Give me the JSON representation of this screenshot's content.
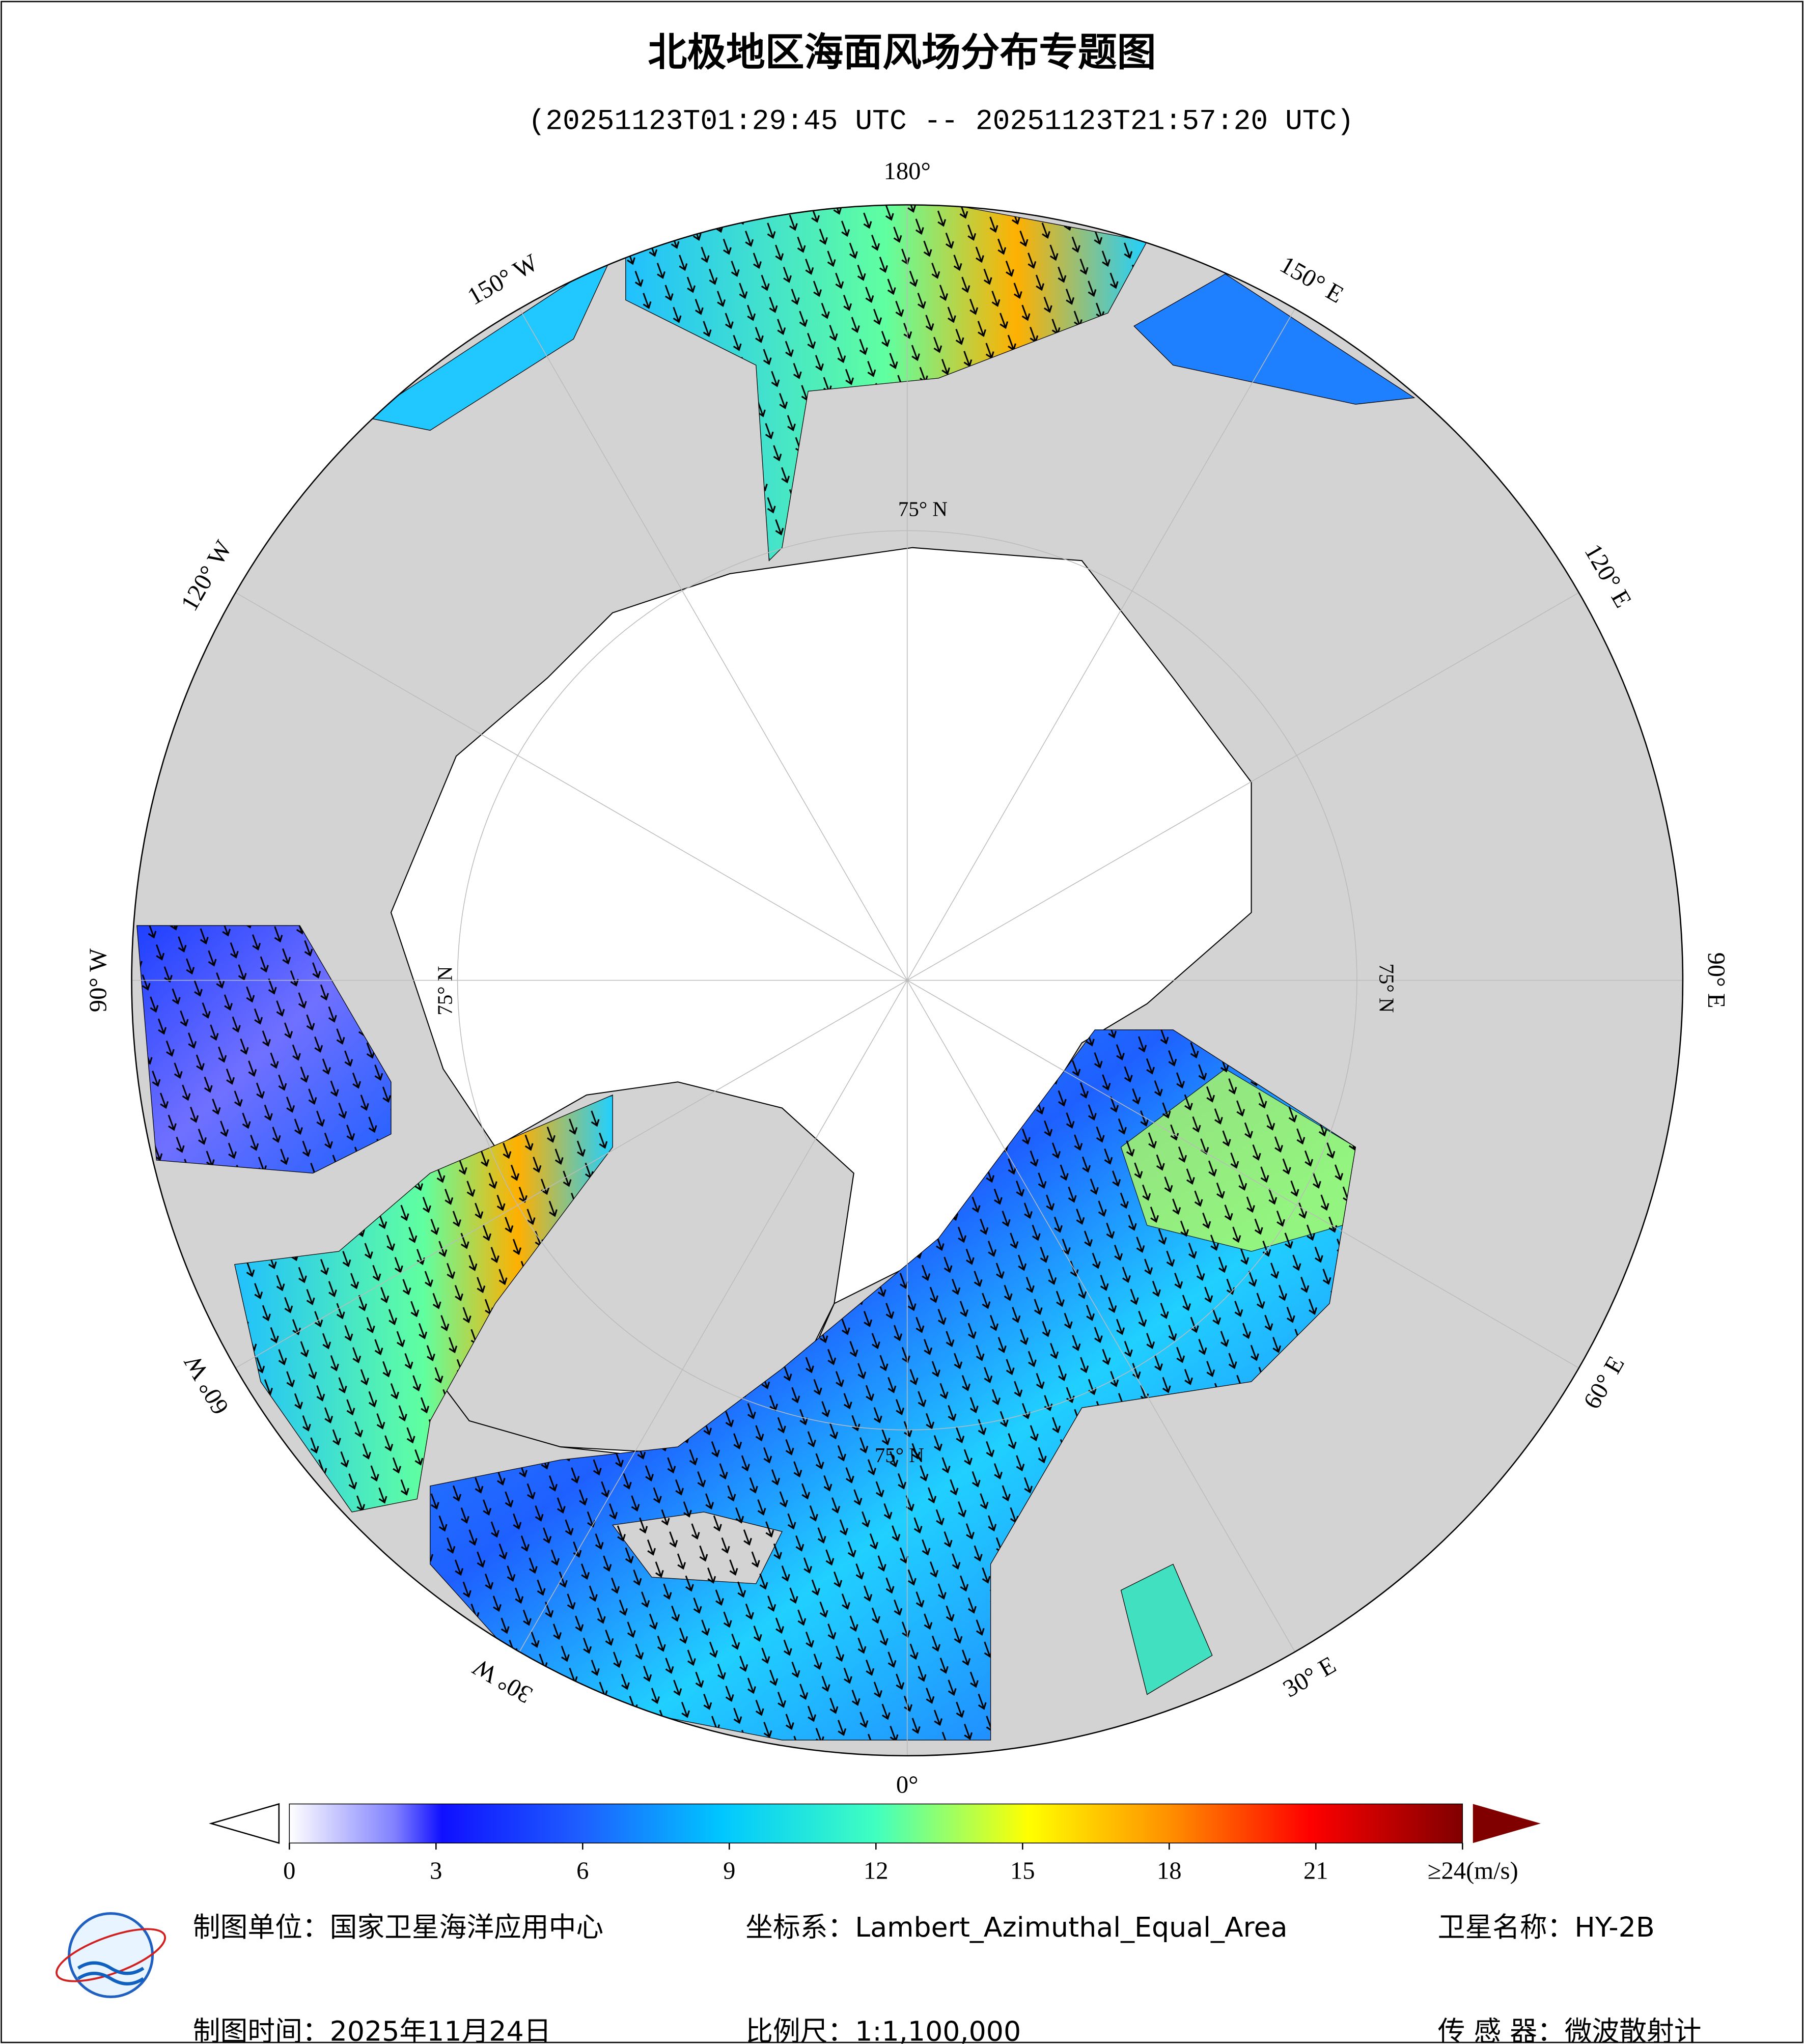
{
  "header": {
    "title": "北极地区海面风场分布专题图",
    "subtitle": "(20251123T01:29:45 UTC -- 20251123T21:57:20 UTC)"
  },
  "map": {
    "longitude_labels": [
      "180°",
      "150° E",
      "120° E",
      "90° E",
      "60° E",
      "30° E",
      "0°",
      "30° W",
      "60° W",
      "90° W",
      "120° W",
      "150° W"
    ],
    "latitude_label": "75° N"
  },
  "colorbar": {
    "lim": [
      0,
      24
    ],
    "ticks": [
      0,
      3,
      6,
      9,
      12,
      15,
      18,
      21,
      {
        "value": 24,
        "label": "≥24(m/s)"
      }
    ]
  },
  "footer": {
    "unit": "制图单位：国家卫星海洋应用中心",
    "date": "制图时间：2025年11月24日",
    "crs": "坐标系：Lambert_Azimuthal_Equal_Area",
    "scale": "比例尺：1:1,100,000",
    "satellite": "卫星名称：HY-2B",
    "sensor": "传 感 器：微波散射计"
  }
}
